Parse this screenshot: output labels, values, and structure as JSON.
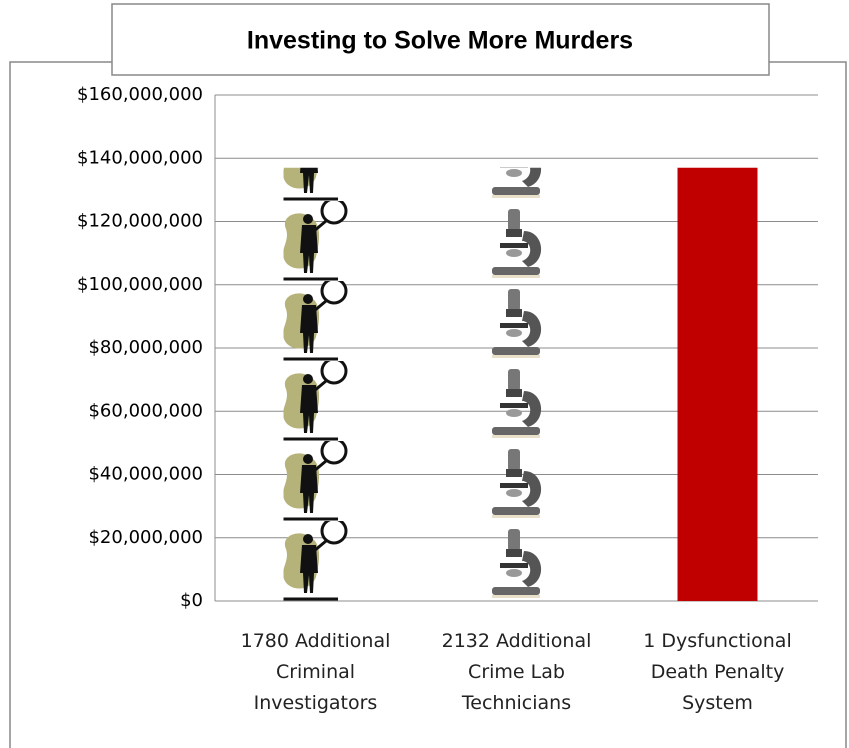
{
  "chart_data": {
    "type": "bar",
    "title": "Investing to Solve More Murders",
    "categories": [
      "1780 Additional Criminal Investigators",
      "2132 Additional Crime Lab Technicians",
      "1 Dysfunctional Death Penalty System"
    ],
    "values": [
      137000000,
      137000000,
      137000000
    ],
    "markers": [
      "investigator",
      "microscope",
      "bar"
    ],
    "color": "#c00000",
    "ylim": [
      0,
      160000000
    ],
    "yticks": [
      {
        "value": 0,
        "label": "$0"
      },
      {
        "value": 20000000,
        "label": "$20,000,000"
      },
      {
        "value": 40000000,
        "label": "$40,000,000"
      },
      {
        "value": 60000000,
        "label": "$60,000,000"
      },
      {
        "value": 80000000,
        "label": "$80,000,000"
      },
      {
        "value": 100000000,
        "label": "$100,000,000"
      },
      {
        "value": 120000000,
        "label": "$120,000,000"
      },
      {
        "value": 140000000,
        "label": "$140,000,000"
      },
      {
        "value": 160000000,
        "label": "$160,000,000"
      }
    ],
    "grid": true
  }
}
